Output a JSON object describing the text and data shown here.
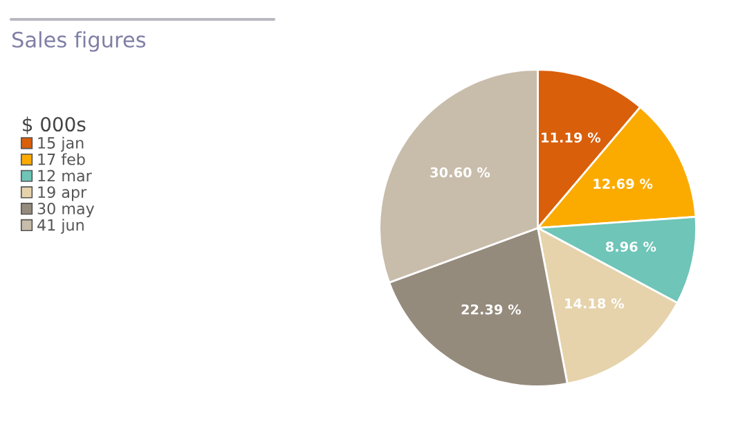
{
  "chart_data": {
    "type": "pie",
    "title": "Sales figures",
    "legend_title": "$ 000s",
    "categories": [
      "15 jan",
      "17 feb",
      "12 mar",
      "19 apr",
      "30 may",
      "41 jun"
    ],
    "values": [
      11.19,
      12.69,
      8.96,
      14.18,
      22.39,
      30.6
    ],
    "value_labels": [
      "11.19 %",
      "12.69 %",
      "8.96 %",
      "14.18 %",
      "22.39 %",
      "30.60 %"
    ],
    "colors": [
      "#d95f0a",
      "#fbab00",
      "#6ec5b8",
      "#e6d3ab",
      "#958b7d",
      "#c8bcab"
    ],
    "legend": "left"
  }
}
